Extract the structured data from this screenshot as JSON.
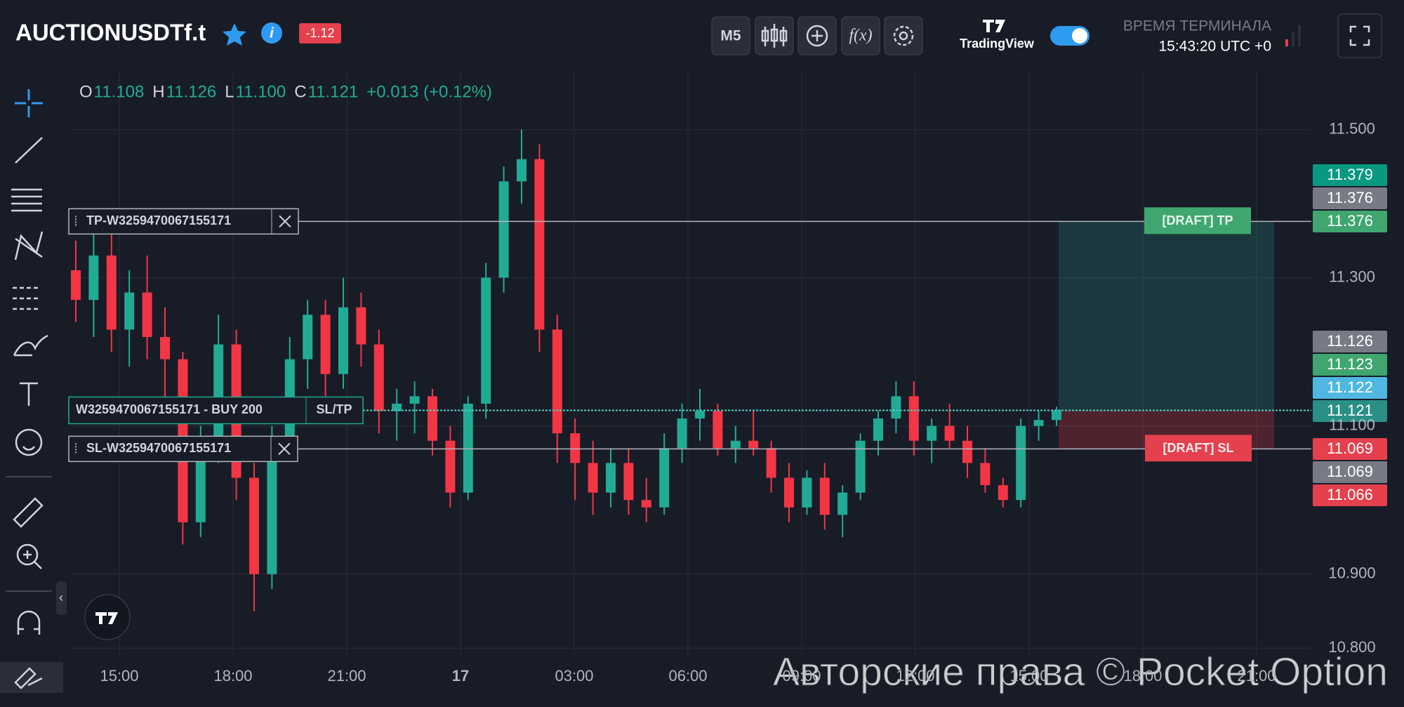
{
  "header": {
    "symbol": "AUCTIONUSDTf.t",
    "change_badge": "-1.12",
    "timeframe": "M5",
    "brand": "TradingView",
    "terminal_time_label": "ВРЕМЯ ТЕРМИНАЛА",
    "terminal_time": "15:43:20 UTC +0",
    "watermark": "Авторские права © Pocket Option"
  },
  "chart_data": {
    "type": "candlestick",
    "legend": [
      {
        "key": "O",
        "text": "11.108"
      },
      {
        "key": "H",
        "text": "11.126"
      },
      {
        "key": "L",
        "text": "11.100"
      },
      {
        "key": "C",
        "text": "11.121"
      }
    ],
    "legend_change": "+0.013 (+0.12%)",
    "up_color": "#22ab94",
    "down_color": "#f23645",
    "ylim": [
      10.787,
      11.58
    ],
    "yticks": [
      {
        "value": 10.8,
        "label": "10.800"
      },
      {
        "value": 10.9,
        "label": "10.900"
      },
      {
        "value": 11.1,
        "label": "11.100"
      },
      {
        "value": 11.3,
        "label": "11.300"
      },
      {
        "value": 11.5,
        "label": "11.500"
      }
    ],
    "xtick_labels": [
      "15:00",
      "18:00",
      "21:00",
      "17",
      "03:00",
      "06:00",
      "09:00",
      "12:00",
      "15:00",
      "18:00",
      "21:00"
    ],
    "ohlc": [
      [
        11.31,
        11.35,
        11.24,
        11.27
      ],
      [
        11.27,
        11.36,
        11.22,
        11.33
      ],
      [
        11.33,
        11.37,
        11.2,
        11.23
      ],
      [
        11.23,
        11.31,
        11.18,
        11.28
      ],
      [
        11.28,
        11.33,
        11.19,
        11.22
      ],
      [
        11.22,
        11.26,
        11.13,
        11.19
      ],
      [
        11.19,
        11.2,
        10.94,
        10.97
      ],
      [
        10.97,
        11.1,
        10.95,
        11.08
      ],
      [
        11.08,
        11.25,
        11.05,
        11.21
      ],
      [
        11.21,
        11.23,
        11.0,
        11.03
      ],
      [
        11.03,
        11.05,
        10.85,
        10.9
      ],
      [
        10.9,
        11.1,
        10.88,
        11.08
      ],
      [
        11.08,
        11.22,
        11.06,
        11.19
      ],
      [
        11.19,
        11.27,
        11.15,
        11.25
      ],
      [
        11.25,
        11.27,
        11.14,
        11.17
      ],
      [
        11.17,
        11.3,
        11.15,
        11.26
      ],
      [
        11.26,
        11.28,
        11.18,
        11.21
      ],
      [
        11.21,
        11.23,
        11.09,
        11.12
      ],
      [
        11.12,
        11.15,
        11.08,
        11.13
      ],
      [
        11.13,
        11.16,
        11.09,
        11.14
      ],
      [
        11.14,
        11.15,
        11.06,
        11.08
      ],
      [
        11.08,
        11.1,
        10.99,
        11.01
      ],
      [
        11.01,
        11.14,
        11.0,
        11.13
      ],
      [
        11.13,
        11.32,
        11.11,
        11.3
      ],
      [
        11.3,
        11.45,
        11.28,
        11.43
      ],
      [
        11.43,
        11.5,
        11.4,
        11.46
      ],
      [
        11.46,
        11.48,
        11.2,
        11.23
      ],
      [
        11.23,
        11.25,
        11.05,
        11.09
      ],
      [
        11.09,
        11.11,
        11.0,
        11.05
      ],
      [
        11.05,
        11.08,
        10.98,
        11.01
      ],
      [
        11.01,
        11.07,
        10.99,
        11.05
      ],
      [
        11.05,
        11.07,
        10.98,
        11.0
      ],
      [
        11.0,
        11.03,
        10.97,
        10.99
      ],
      [
        10.99,
        11.09,
        10.98,
        11.07
      ],
      [
        11.07,
        11.13,
        11.05,
        11.11
      ],
      [
        11.11,
        11.15,
        11.08,
        11.12
      ],
      [
        11.12,
        11.13,
        11.06,
        11.07
      ],
      [
        11.07,
        11.1,
        11.05,
        11.08
      ],
      [
        11.08,
        11.12,
        11.06,
        11.07
      ],
      [
        11.07,
        11.08,
        11.01,
        11.03
      ],
      [
        11.03,
        11.05,
        10.97,
        10.99
      ],
      [
        10.99,
        11.04,
        10.98,
        11.03
      ],
      [
        11.03,
        11.05,
        10.96,
        10.98
      ],
      [
        10.98,
        11.02,
        10.95,
        11.01
      ],
      [
        11.01,
        11.09,
        11.0,
        11.08
      ],
      [
        11.08,
        11.12,
        11.06,
        11.11
      ],
      [
        11.11,
        11.16,
        11.09,
        11.14
      ],
      [
        11.14,
        11.16,
        11.06,
        11.08
      ],
      [
        11.08,
        11.11,
        11.05,
        11.1
      ],
      [
        11.1,
        11.13,
        11.07,
        11.08
      ],
      [
        11.08,
        11.1,
        11.03,
        11.05
      ],
      [
        11.05,
        11.07,
        11.01,
        11.02
      ],
      [
        11.02,
        11.03,
        10.99,
        11.0
      ],
      [
        11.0,
        11.11,
        10.99,
        11.1
      ],
      [
        11.1,
        11.12,
        11.08,
        11.108
      ],
      [
        11.108,
        11.126,
        11.1,
        11.121
      ]
    ],
    "orders": {
      "tp": {
        "label": "TP-W3259470067155171",
        "value": 11.376,
        "draft": "[DRAFT] TP"
      },
      "entry": {
        "label": "W3259470067155171 - BUY 200",
        "button": "SL/TP",
        "value": 11.121
      },
      "sl": {
        "label": "SL-W3259470067155171",
        "value": 11.069,
        "draft": "[DRAFT] SL"
      }
    },
    "price_badges": [
      {
        "value": 11.379,
        "color": "#089981"
      },
      {
        "value": 11.376,
        "color": "#787b86"
      },
      {
        "value": 11.376,
        "color": "#3fa66f"
      },
      {
        "value": 11.126,
        "color": "#787b86"
      },
      {
        "value": 11.123,
        "color": "#3fa66f"
      },
      {
        "value": 11.122,
        "color": "#4fb7e0"
      },
      {
        "value": 11.121,
        "color": "#2a8f86"
      },
      {
        "value": 11.069,
        "color": "#e5404d"
      },
      {
        "value": 11.069,
        "color": "#787b86"
      },
      {
        "value": 11.066,
        "color": "#e5404d"
      }
    ]
  }
}
